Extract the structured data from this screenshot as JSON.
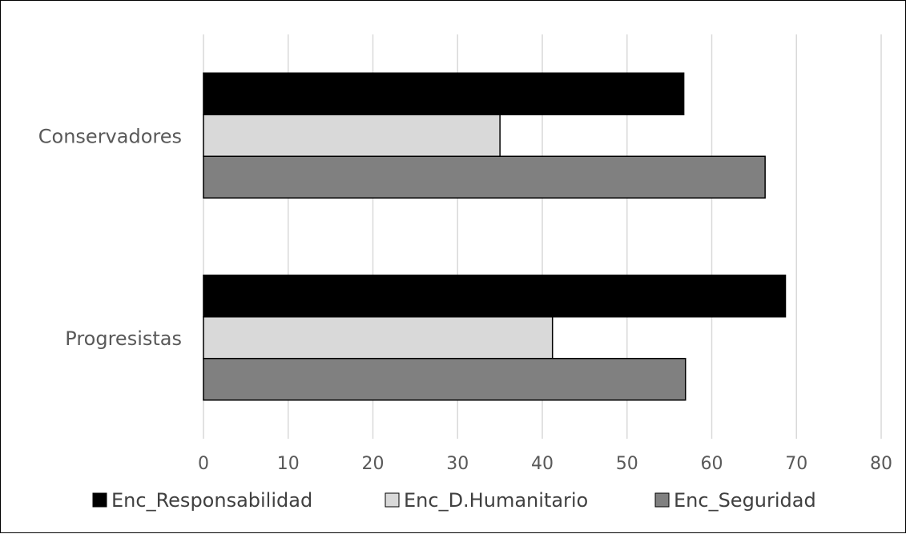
{
  "chart_data": {
    "type": "bar",
    "orientation": "horizontal",
    "categories": [
      "Conservadores",
      "Progresistas"
    ],
    "series": [
      {
        "name": "Enc_Responsabilidad",
        "color": "#000000",
        "values": [
          56.7,
          68.7
        ]
      },
      {
        "name": "Enc_D.Humanitario",
        "color": "#d9d9d9",
        "values": [
          35.0,
          41.2
        ]
      },
      {
        "name": "Enc_Seguridad",
        "color": "#808080",
        "values": [
          66.3,
          56.9
        ]
      }
    ],
    "xlim": [
      0,
      80
    ],
    "xticks": [
      0,
      10,
      20,
      30,
      40,
      50,
      60,
      70,
      80
    ],
    "grid": true,
    "legend_position": "bottom",
    "title": "",
    "xlabel": "",
    "ylabel": ""
  }
}
